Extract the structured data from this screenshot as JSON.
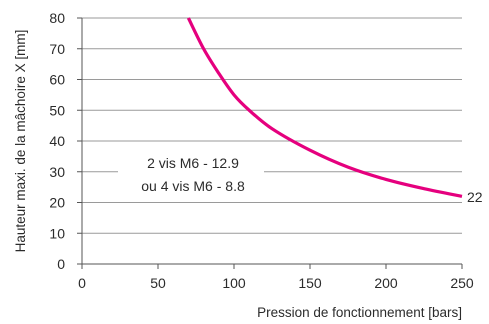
{
  "chart_data": {
    "type": "line",
    "xlabel": "Pression de fonctionnement [bars]",
    "ylabel": "Hauteur maxi. de la mâchoire X [mm]",
    "xlim": [
      0,
      250
    ],
    "ylim": [
      0,
      80
    ],
    "xticks": [
      "0",
      "50",
      "100",
      "150",
      "200",
      "250"
    ],
    "yticks": [
      "0",
      "10",
      "20",
      "30",
      "40",
      "50",
      "60",
      "70",
      "80"
    ],
    "grid": "horizontal",
    "series": [
      {
        "color": "#e5007e",
        "x": [
          70,
          80,
          90,
          100,
          110,
          125,
          150,
          175,
          200,
          225,
          250
        ],
        "y": [
          80,
          70,
          62,
          55,
          50,
          44,
          37,
          31.5,
          27.5,
          24.5,
          22
        ]
      }
    ],
    "annotations": {
      "end_value": "22",
      "box_line1": "2 vis M6 - 12.9",
      "box_line2": "ou 4 vis M6 - 8.8"
    }
  }
}
